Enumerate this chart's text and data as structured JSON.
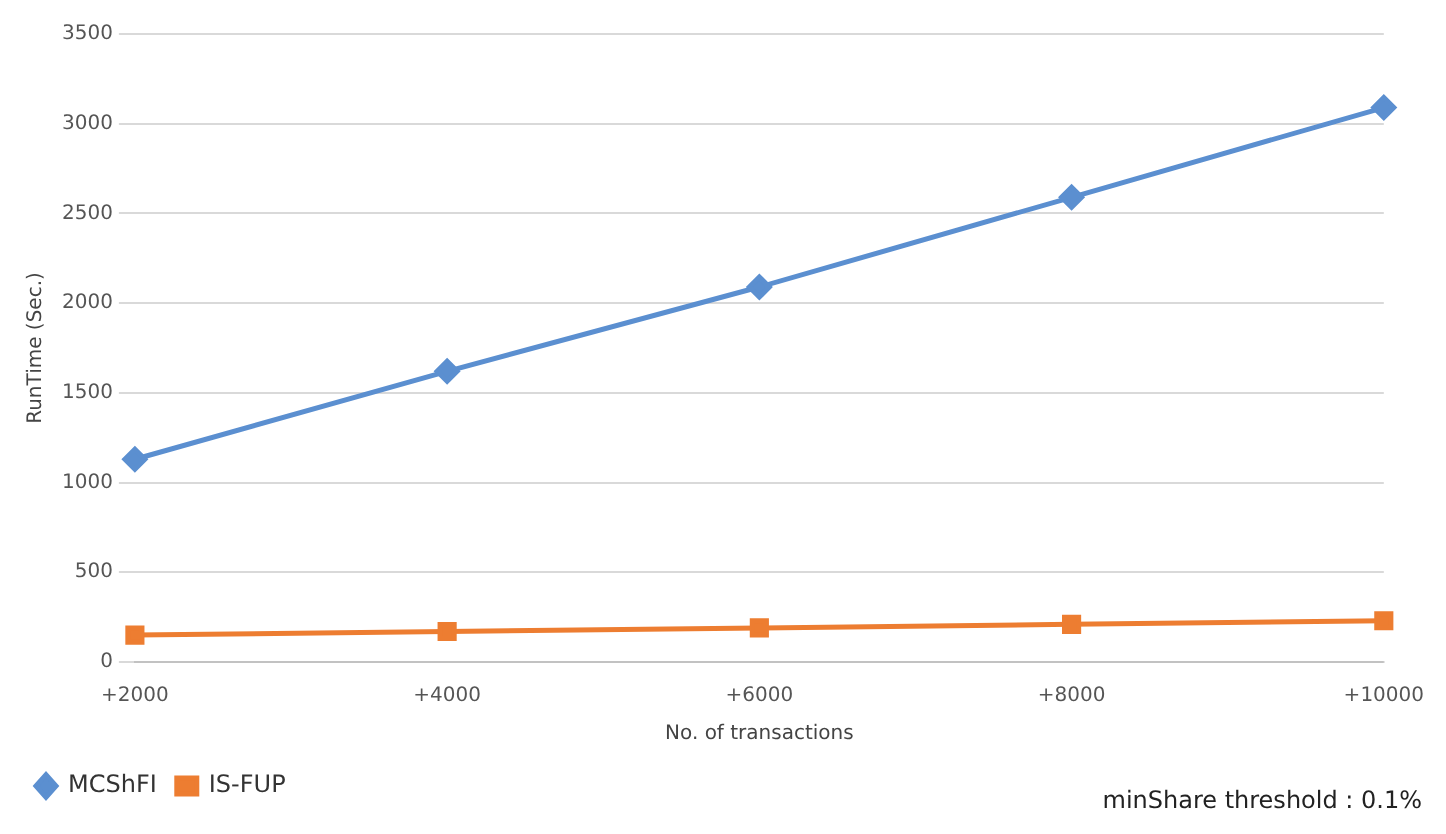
{
  "chart_data": {
    "type": "line",
    "xlabel": "No. of transactions",
    "ylabel": "RunTime (Sec.)",
    "categories": [
      "+2000",
      "+4000",
      "+6000",
      "+8000",
      "+10000"
    ],
    "series": [
      {
        "name": "MCShFI",
        "color": "#5b8fd0",
        "values": [
          1130,
          1620,
          2090,
          2590,
          3090
        ],
        "marker": "diamond"
      },
      {
        "name": "IS-FUP",
        "color": "#ed7d31",
        "values": [
          150,
          170,
          190,
          210,
          230
        ],
        "marker": "square"
      }
    ],
    "ylim": [
      0,
      3500
    ],
    "yticks": [
      0,
      500,
      1000,
      1500,
      2000,
      2500,
      3000,
      3500
    ],
    "grid": "y",
    "legend": "bottom left",
    "annotations": [
      "minShare threshold : 0.1%"
    ]
  }
}
